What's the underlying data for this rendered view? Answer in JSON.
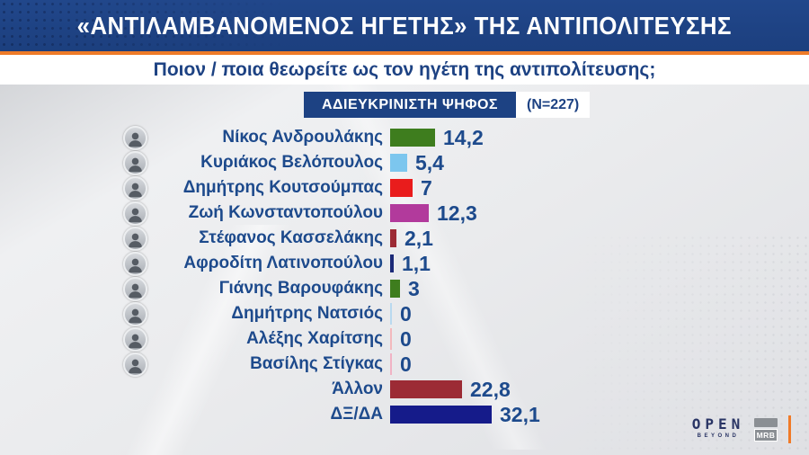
{
  "header": {
    "title": "«ΑΝΤΙΛΑΜΒΑΝΟΜΕΝΟΣ ΗΓΕΤΗΣ» ΤΗΣ ΑΝΤΙΠΟΛΙΤΕΥΣΗΣ",
    "subtitle": "Ποιον / ποια θεωρείτε ως τον ηγέτη της αντιπολίτευσης;",
    "bg_color": "#1d4283",
    "accent_color": "#ee7b28"
  },
  "badge": {
    "label": "ΑΔΙΕΥΚΡΙΝΙΣΤΗ ΨΗΦΟΣ",
    "sample": "(N=227)"
  },
  "chart_data": {
    "type": "bar",
    "orientation": "horizontal",
    "title": "«ΑΝΤΙΛΑΜΒΑΝΟΜΕΝΟΣ ΗΓΕΤΗΣ» ΤΗΣ ΑΝΤΙΠΟΛΙΤΕΥΣΗΣ",
    "subtitle": "Ποιον / ποια θεωρείτε ως τον ηγέτη της αντιπολίτευσης;",
    "sample_note": "(N=227)",
    "categories": [
      "Νίκος Ανδρουλάκης",
      "Κυριάκος Βελόπουλος",
      "Δημήτρης Κουτσούμπας",
      "Ζωή Κωνσταντοπούλου",
      "Στέφανος Κασσελάκης",
      "Αφροδίτη Λατινοπούλου",
      "Γιάνης Βαρουφάκης",
      "Δημήτρης Νατσιός",
      "Αλέξης Χαρίτσης",
      "Βασίλης Στίγκας",
      "Άλλον",
      "ΔΞ/ΔΑ"
    ],
    "values": [
      14.2,
      5.4,
      7,
      12.3,
      2.1,
      1.1,
      3,
      0,
      0,
      0,
      22.8,
      32.1
    ],
    "display_values": [
      "14,2",
      "5,4",
      "7",
      "12,3",
      "2,1",
      "1,1",
      "3",
      "0",
      "0",
      "0",
      "22,8",
      "32,1"
    ],
    "bar_colors": [
      "#3e7d1e",
      "#7cc6ee",
      "#e91c1c",
      "#b23a9c",
      "#9c2b35",
      "#1b2a78",
      "#3e7d1e",
      "#b9d9ef",
      "#f3b9bd",
      "#f1b3c5",
      "#9c2b35",
      "#151b8a"
    ],
    "has_photo": [
      true,
      true,
      true,
      true,
      true,
      true,
      true,
      true,
      true,
      true,
      false,
      false
    ],
    "xlim": [
      0,
      35
    ],
    "grid": false,
    "legend": false
  },
  "footer": {
    "open_logo": "OPEN",
    "open_sub": "BEYOND",
    "mrb_logo": "MRB"
  }
}
